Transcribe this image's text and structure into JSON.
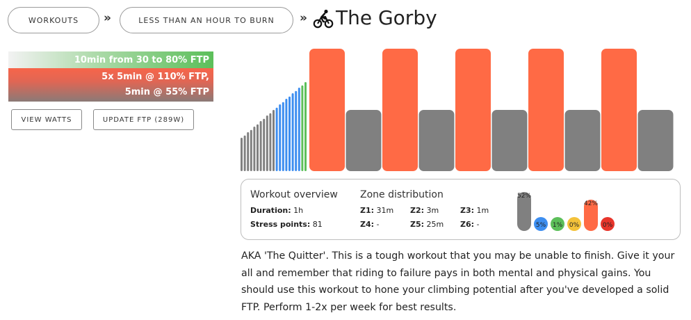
{
  "breadcrumb": {
    "items": [
      "WORKOUTS",
      "LESS THAN AN HOUR TO BURN"
    ],
    "separator": "»"
  },
  "workout": {
    "title": "The Gorby",
    "icon": "bicycle-icon"
  },
  "segments": {
    "warmup": "10min from 30 to 80% FTP",
    "main_line1": "5x 5min @ 110% FTP,",
    "main_line2": "5min @ 55% FTP"
  },
  "actions": {
    "view_watts": "VIEW WATTS",
    "update_ftp": "UPDATE FTP (289W)"
  },
  "profile": {
    "colors": {
      "z1": "#808080",
      "z2": "#3d8ef0",
      "z3": "#5cbf5a",
      "z5": "#ff6a45"
    },
    "warmup_ramp_pct": [
      30,
      32,
      35,
      37,
      40,
      42,
      45,
      47,
      50,
      52,
      55,
      57,
      60,
      62,
      65,
      67,
      70,
      72,
      75,
      77,
      80
    ],
    "intervals": [
      {
        "type": "work",
        "pct": 110
      },
      {
        "type": "rest",
        "pct": 55
      },
      {
        "type": "work",
        "pct": 110
      },
      {
        "type": "rest",
        "pct": 55
      },
      {
        "type": "work",
        "pct": 110
      },
      {
        "type": "rest",
        "pct": 55
      },
      {
        "type": "work",
        "pct": 110
      },
      {
        "type": "rest",
        "pct": 55
      },
      {
        "type": "work",
        "pct": 110
      },
      {
        "type": "rest",
        "pct": 55
      }
    ]
  },
  "overview": {
    "heading": "Workout overview",
    "duration_label": "Duration:",
    "duration_value": "1h",
    "stress_label": "Stress points:",
    "stress_value": "81"
  },
  "zones": {
    "heading": "Zone distribution",
    "z1_label": "Z1:",
    "z1_value": "31m",
    "z2_label": "Z2:",
    "z2_value": "3m",
    "z3_label": "Z3:",
    "z3_value": "1m",
    "z4_label": "Z4:",
    "z4_value": "-",
    "z5_label": "Z5:",
    "z5_value": "25m",
    "z6_label": "Z6:",
    "z6_value": "-",
    "distribution": [
      {
        "zone": "Z1",
        "label": "52%",
        "pct": 52,
        "color": "#808080"
      },
      {
        "zone": "Z2",
        "label": "5%",
        "pct": 5,
        "color": "#3d8ef0"
      },
      {
        "zone": "Z3",
        "label": "1%",
        "pct": 1,
        "color": "#5cbf5a"
      },
      {
        "zone": "Z4",
        "label": "0%",
        "pct": 0,
        "color": "#f4c23a"
      },
      {
        "zone": "Z5",
        "label": "42%",
        "pct": 42,
        "color": "#ff6a45"
      },
      {
        "zone": "Z6",
        "label": "0%",
        "pct": 0,
        "color": "#e8352b"
      }
    ]
  },
  "description": "AKA 'The Quitter'. This is a tough workout that you may be unable to finish. Give it your all and remember that riding to failure pays in both mental and physical gains. You should use this workout to hone your climbing potential after you've developed a solid FTP. Perform 1-2x per week for best results."
}
